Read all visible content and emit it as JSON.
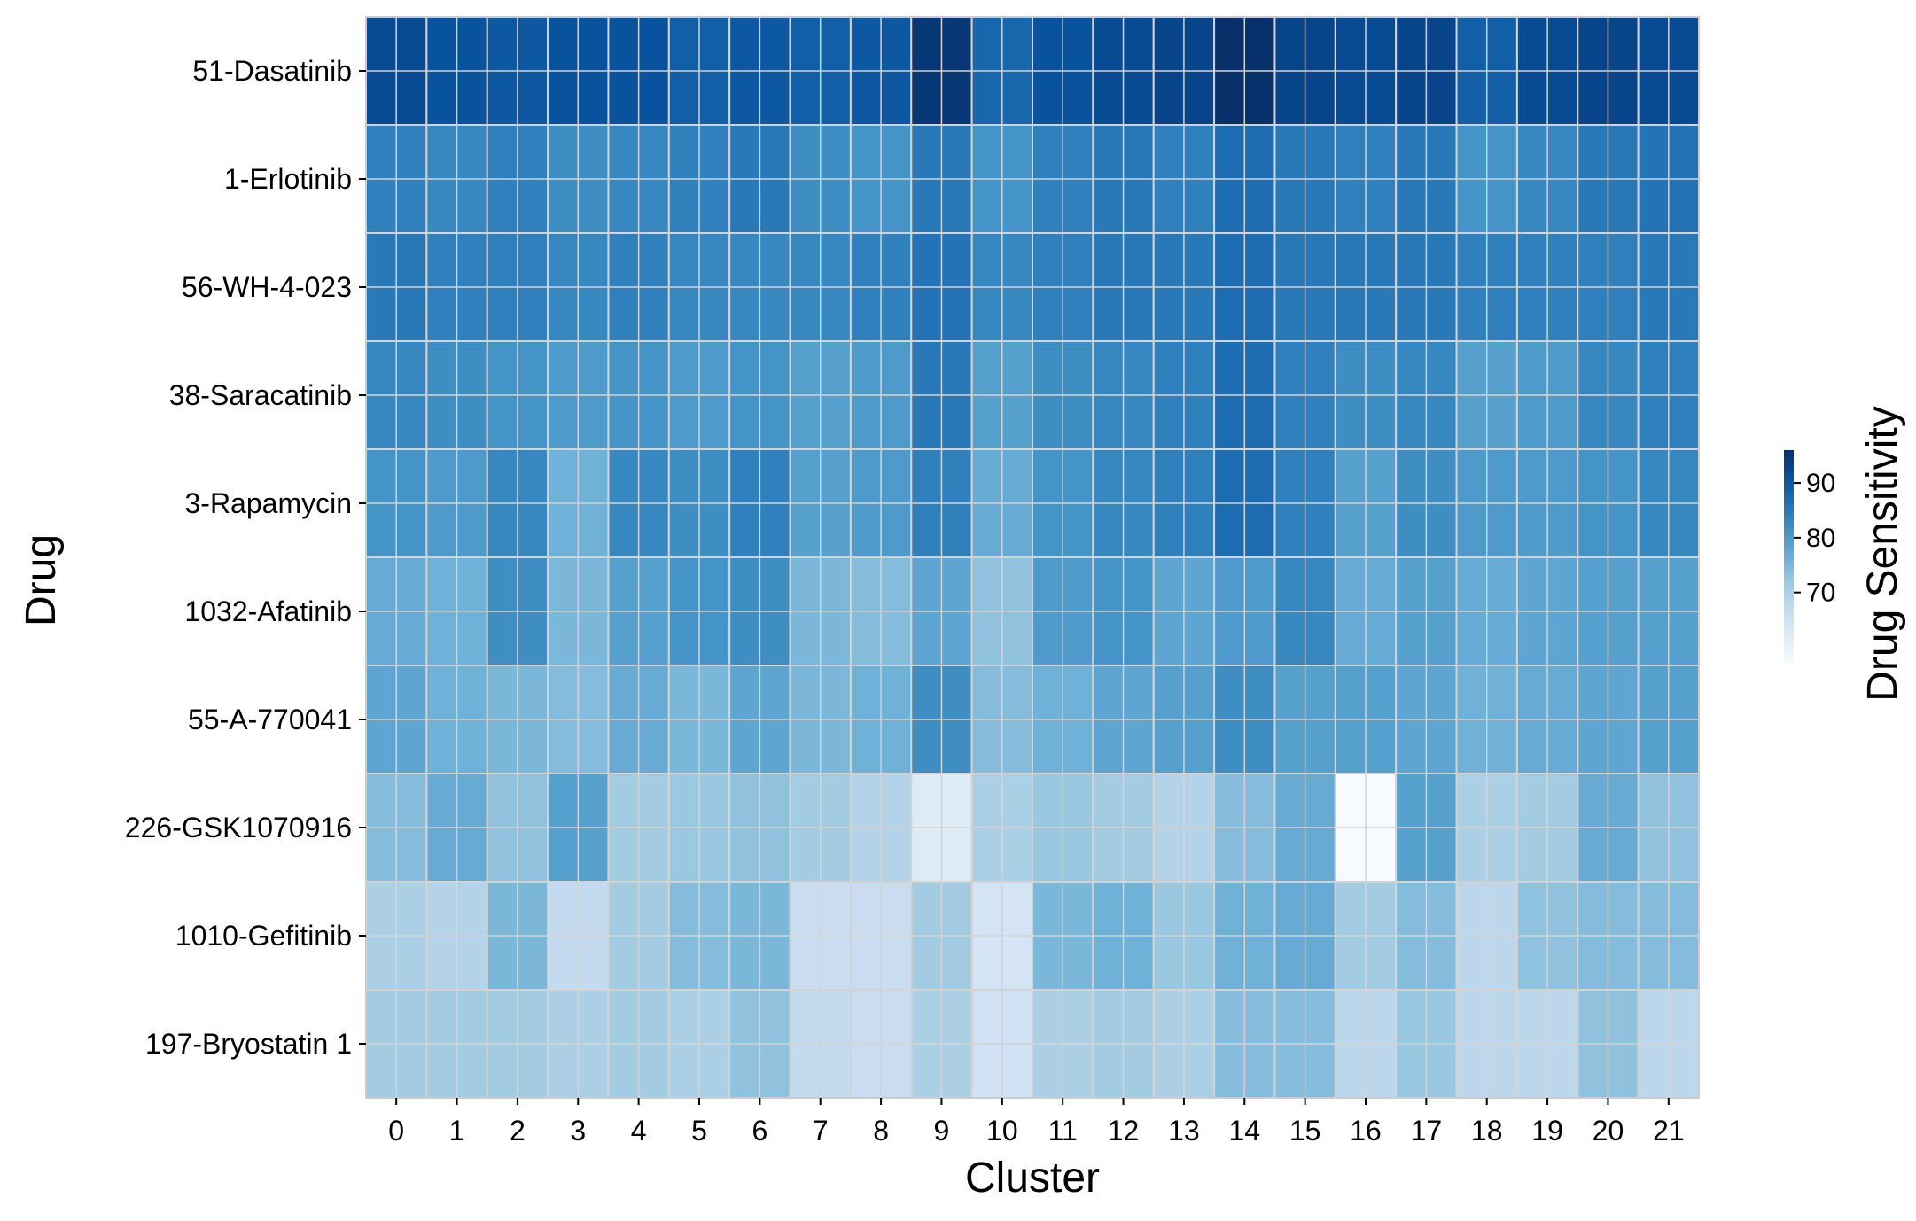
{
  "chart_data": {
    "type": "heatmap",
    "xlabel": "Cluster",
    "ylabel": "Drug",
    "x": [
      "0",
      "1",
      "2",
      "3",
      "4",
      "5",
      "6",
      "7",
      "8",
      "9",
      "10",
      "11",
      "12",
      "13",
      "14",
      "15",
      "16",
      "17",
      "18",
      "19",
      "20",
      "21"
    ],
    "y": [
      "51-Dasatinib",
      "1-Erlotinib",
      "56-WH-4-023",
      "38-Saracatinib",
      "3-Rapamycin",
      "1032-Afatinib",
      "55-A-770041",
      "226-GSK1070916",
      "1010-Gefitinib",
      "197-Bryostatin 1"
    ],
    "values": [
      [
        92,
        91,
        90,
        91,
        91,
        89,
        90,
        89,
        90,
        95,
        88,
        91,
        92,
        93,
        96,
        93,
        92,
        93,
        89,
        92,
        93,
        92
      ],
      [
        84,
        83,
        84,
        82,
        83,
        84,
        85,
        82,
        81,
        85,
        81,
        84,
        85,
        84,
        87,
        85,
        84,
        85,
        81,
        83,
        85,
        86
      ],
      [
        85,
        84,
        84,
        83,
        84,
        83,
        83,
        83,
        84,
        86,
        83,
        84,
        85,
        85,
        87,
        85,
        85,
        85,
        84,
        84,
        84,
        85
      ],
      [
        83,
        82,
        81,
        80,
        81,
        80,
        81,
        79,
        80,
        85,
        79,
        82,
        83,
        84,
        87,
        84,
        82,
        83,
        79,
        80,
        83,
        84
      ],
      [
        81,
        80,
        83,
        76,
        83,
        82,
        84,
        79,
        80,
        84,
        77,
        81,
        83,
        84,
        87,
        84,
        79,
        82,
        80,
        80,
        81,
        83
      ],
      [
        77,
        76,
        82,
        75,
        79,
        81,
        82,
        75,
        74,
        78,
        73,
        80,
        81,
        78,
        80,
        83,
        77,
        79,
        77,
        78,
        79,
        79
      ],
      [
        78,
        76,
        75,
        74,
        77,
        75,
        78,
        75,
        76,
        82,
        74,
        76,
        78,
        79,
        82,
        79,
        79,
        78,
        76,
        77,
        78,
        79
      ],
      [
        74,
        77,
        73,
        79,
        71,
        72,
        73,
        71,
        69,
        62,
        70,
        72,
        71,
        69,
        74,
        77,
        57,
        79,
        70,
        71,
        77,
        73
      ],
      [
        70,
        69,
        75,
        67,
        71,
        74,
        75,
        66,
        66,
        71,
        64,
        75,
        76,
        72,
        76,
        77,
        71,
        74,
        68,
        73,
        74,
        74
      ],
      [
        71,
        71,
        71,
        70,
        71,
        70,
        73,
        67,
        66,
        70,
        65,
        70,
        71,
        70,
        74,
        74,
        68,
        72,
        68,
        68,
        73,
        68
      ]
    ],
    "colorbar": {
      "label": "Drug Sensitivity",
      "ticks": [
        "70",
        "80",
        "90"
      ],
      "vmin": 57,
      "vmax": 96,
      "colormap": "Blues"
    }
  }
}
